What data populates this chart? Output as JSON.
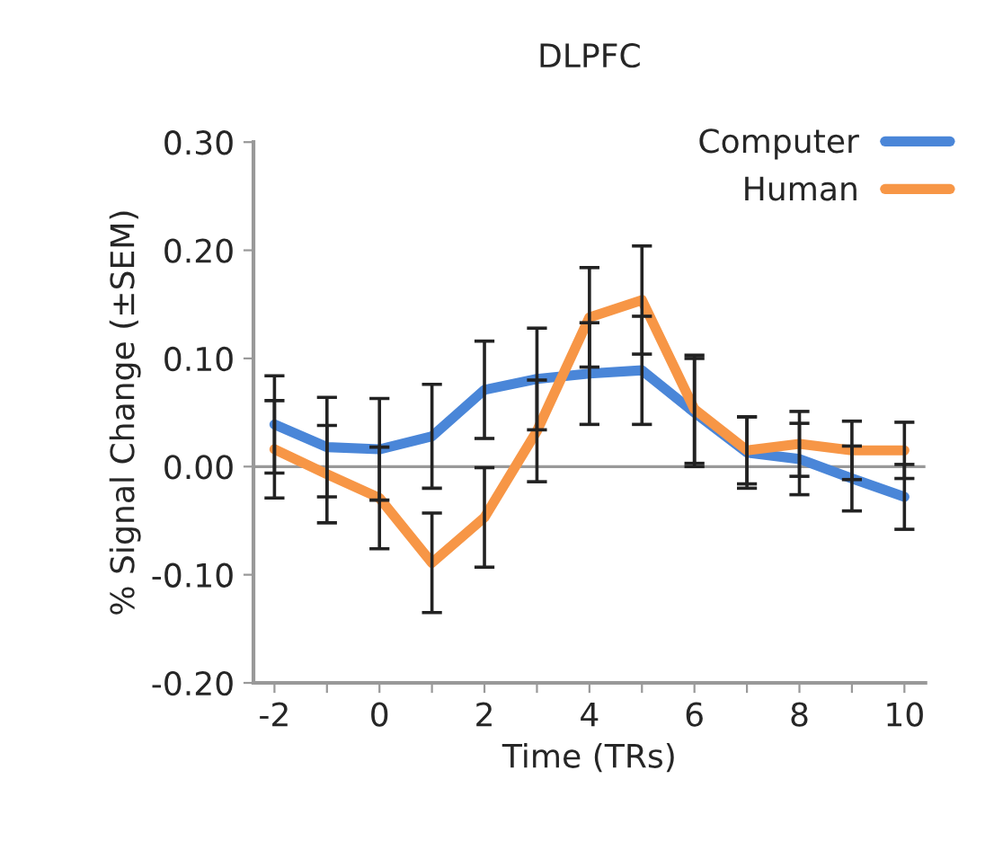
{
  "chart_data": {
    "type": "line",
    "title": "DLPFC",
    "xlabel": "Time (TRs)",
    "ylabel": "% Signal Change (±SEM)",
    "x": [
      -2,
      -1,
      0,
      1,
      2,
      3,
      4,
      5,
      6,
      7,
      8,
      9,
      10
    ],
    "series": [
      {
        "name": "Computer",
        "color": "#4a86d8",
        "values": [
          0.039,
          0.018,
          0.016,
          0.028,
          0.071,
          0.081,
          0.086,
          0.089,
          0.05,
          0.013,
          0.007,
          -0.011,
          -0.028
        ],
        "errors": [
          0.045,
          0.046,
          0.047,
          0.048,
          0.045,
          0.047,
          0.047,
          0.05,
          0.05,
          0.033,
          0.033,
          0.03,
          0.03
        ]
      },
      {
        "name": "Human",
        "color": "#f79646",
        "values": [
          0.016,
          -0.007,
          -0.029,
          -0.089,
          -0.047,
          0.033,
          0.138,
          0.154,
          0.053,
          0.015,
          0.021,
          0.015,
          0.015
        ],
        "errors": [
          0.045,
          0.045,
          0.047,
          0.046,
          0.046,
          0.047,
          0.046,
          0.05,
          0.05,
          0.031,
          0.03,
          0.027,
          0.026
        ]
      }
    ],
    "xlim": [
      -2.4,
      10.4
    ],
    "xticks": [
      -2,
      {
        "value": -1,
        "label": null
      },
      0,
      {
        "value": 1,
        "label": null
      },
      2,
      {
        "value": 3,
        "label": null
      },
      4,
      {
        "value": 5,
        "label": null
      },
      6,
      {
        "value": 7,
        "label": null
      },
      8,
      {
        "value": 9,
        "label": null
      },
      10
    ],
    "ylim": [
      -0.2,
      0.3
    ],
    "yticks": [
      {
        "value": -0.2,
        "label": "-0.20"
      },
      {
        "value": -0.1,
        "label": "-0.10"
      },
      {
        "value": 0,
        "label": "0.00"
      },
      {
        "value": 0.1,
        "label": "0.10"
      },
      {
        "value": 0.2,
        "label": "0.20"
      },
      {
        "value": 0.3,
        "label": "0.30"
      }
    ],
    "ref_lines": [
      {
        "axis": "y",
        "value": 0,
        "color": "#999999"
      }
    ],
    "legend": "top right",
    "marker": "none",
    "line_style": "solid",
    "grid": false
  }
}
